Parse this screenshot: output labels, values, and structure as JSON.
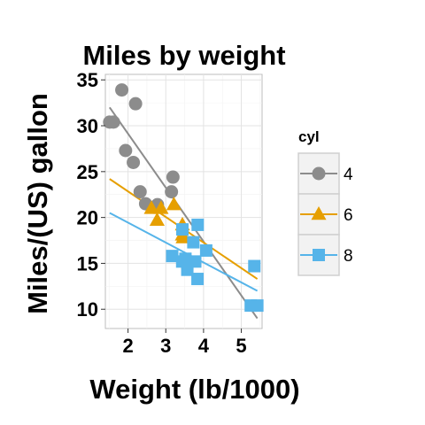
{
  "chart_data": {
    "type": "scatter",
    "title": "Miles by weight",
    "xlabel": "Weight (lb/1000)",
    "ylabel": "Miles/(US) gallon",
    "xlim": [
      1.4,
      5.55
    ],
    "ylim": [
      7.9,
      35.6
    ],
    "x_ticks": [
      2,
      3,
      4,
      5
    ],
    "y_ticks": [
      10,
      15,
      20,
      25,
      30,
      35
    ],
    "grid": true,
    "legend": {
      "title": "cyl",
      "position": "right"
    },
    "series": [
      {
        "name": "4",
        "color": "#8c8c8c",
        "marker": "circle",
        "points": [
          [
            1.513,
            30.4
          ],
          [
            1.615,
            30.4
          ],
          [
            1.835,
            33.9
          ],
          [
            2.2,
            32.4
          ],
          [
            1.935,
            27.3
          ],
          [
            2.14,
            26.0
          ],
          [
            2.32,
            22.8
          ],
          [
            2.465,
            21.5
          ],
          [
            2.78,
            21.4
          ],
          [
            3.15,
            22.8
          ],
          [
            3.19,
            24.4
          ]
        ],
        "fit": [
          [
            1.513,
            32.0
          ],
          [
            5.424,
            9.0
          ]
        ]
      },
      {
        "name": "6",
        "color": "#e69f00",
        "marker": "triangle",
        "points": [
          [
            2.62,
            21.0
          ],
          [
            2.875,
            21.0
          ],
          [
            2.77,
            19.7
          ],
          [
            3.215,
            21.4
          ],
          [
            3.44,
            18.1
          ],
          [
            3.44,
            19.2
          ],
          [
            3.46,
            17.8
          ]
        ],
        "fit": [
          [
            1.513,
            24.2
          ],
          [
            5.424,
            13.3
          ]
        ]
      },
      {
        "name": "8",
        "color": "#56b4e9",
        "marker": "square",
        "points": [
          [
            3.44,
            18.7
          ],
          [
            3.57,
            14.3
          ],
          [
            4.07,
            16.4
          ],
          [
            3.73,
            17.3
          ],
          [
            3.78,
            15.2
          ],
          [
            5.25,
            10.4
          ],
          [
            5.424,
            10.4
          ],
          [
            5.345,
            14.7
          ],
          [
            3.52,
            15.5
          ],
          [
            3.435,
            15.2
          ],
          [
            3.84,
            13.3
          ],
          [
            3.845,
            19.2
          ],
          [
            3.17,
            15.8
          ],
          [
            3.57,
            15.0
          ]
        ],
        "fit": [
          [
            1.513,
            20.5
          ],
          [
            5.424,
            12.0
          ]
        ]
      }
    ]
  }
}
